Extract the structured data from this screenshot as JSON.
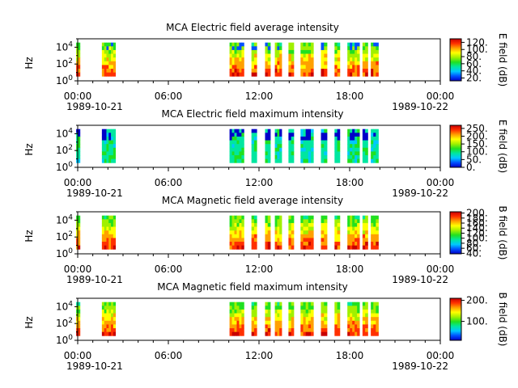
{
  "figure": {
    "x_ticks": [
      "00:00",
      "06:00",
      "12:00",
      "18:00",
      "00:00"
    ],
    "x_tick_hours": [
      0,
      6,
      12,
      18,
      24
    ],
    "date_left": "1989-10-21",
    "date_right": "1989-10-22",
    "y_tick_exponents": [
      0,
      2,
      4
    ],
    "y_tick_base": "10",
    "colormap": [
      "#0000c8",
      "#0050ff",
      "#00c8ff",
      "#00e6a0",
      "#20e020",
      "#a0f000",
      "#ffff00",
      "#ffa000",
      "#ff3000",
      "#c80000"
    ]
  },
  "chart_data": [
    {
      "type": "heatmap",
      "title": "MCA  Electric field average intensity",
      "ylabel": "Hz",
      "ylim": [
        1,
        100000
      ],
      "yscale": "log",
      "xlim_hours": [
        0,
        24
      ],
      "colorbar_label": "E field (dB)",
      "colorbar_ticks": [
        "20.",
        "40.",
        "60.",
        "80.",
        "100.",
        "120."
      ],
      "colorbar_values": [
        20,
        40,
        60,
        80,
        100,
        120
      ],
      "colorbar_range": [
        12,
        130
      ],
      "data_intervals_hours": [
        [
          -0.1,
          0.15
        ],
        [
          1.6,
          2.5
        ],
        [
          10.05,
          11.0
        ],
        [
          11.5,
          11.85
        ],
        [
          12.4,
          12.75
        ],
        [
          13.05,
          13.5
        ],
        [
          13.95,
          14.3
        ],
        [
          14.75,
          15.6
        ],
        [
          16.1,
          16.5
        ],
        [
          17.0,
          17.35
        ],
        [
          17.85,
          18.65
        ],
        [
          18.85,
          19.2
        ],
        [
          19.4,
          19.9
        ]
      ]
    },
    {
      "type": "heatmap",
      "title": "MCA  Electric field maximum intensity",
      "ylabel": "Hz",
      "ylim": [
        1,
        100000
      ],
      "yscale": "log",
      "xlim_hours": [
        0,
        24
      ],
      "colorbar_label": "E field (dB)",
      "colorbar_ticks": [
        "0.",
        "50.",
        "100.",
        "150.",
        "200.",
        "250."
      ],
      "colorbar_values": [
        0,
        50,
        100,
        150,
        200,
        250
      ],
      "colorbar_range": [
        0,
        270
      ],
      "data_intervals_hours": [
        [
          -0.1,
          0.15
        ],
        [
          1.6,
          2.5
        ],
        [
          10.05,
          11.0
        ],
        [
          11.5,
          11.85
        ],
        [
          12.4,
          12.75
        ],
        [
          13.05,
          13.5
        ],
        [
          13.95,
          14.3
        ],
        [
          14.75,
          15.6
        ],
        [
          16.1,
          16.5
        ],
        [
          17.0,
          17.35
        ],
        [
          17.85,
          18.65
        ],
        [
          18.85,
          19.2
        ],
        [
          19.4,
          19.9
        ]
      ]
    },
    {
      "type": "heatmap",
      "title": "MCA  Magnetic field average intensity",
      "ylabel": "Hz",
      "ylim": [
        1,
        100000
      ],
      "yscale": "log",
      "xlim_hours": [
        0,
        24
      ],
      "colorbar_label": "B field (dB)",
      "colorbar_ticks": [
        "40.",
        "60.",
        "80.",
        "100.",
        "120.",
        "140.",
        "160.",
        "180.",
        "200."
      ],
      "colorbar_values": [
        40,
        60,
        80,
        100,
        120,
        140,
        160,
        180,
        200
      ],
      "colorbar_range": [
        38,
        205
      ],
      "data_intervals_hours": [
        [
          -0.1,
          0.15
        ],
        [
          1.6,
          2.5
        ],
        [
          10.05,
          11.0
        ],
        [
          11.5,
          11.85
        ],
        [
          12.4,
          12.75
        ],
        [
          13.05,
          13.5
        ],
        [
          13.95,
          14.3
        ],
        [
          14.75,
          15.6
        ],
        [
          16.1,
          16.5
        ],
        [
          17.0,
          17.35
        ],
        [
          17.85,
          18.65
        ],
        [
          18.85,
          19.2
        ],
        [
          19.4,
          19.9
        ]
      ]
    },
    {
      "type": "heatmap",
      "title": "MCA  Magnetic field maximum intensity",
      "ylabel": "Hz",
      "ylim": [
        1,
        100000
      ],
      "yscale": "log",
      "xlim_hours": [
        0,
        24
      ],
      "colorbar_label": "B field (dB)",
      "colorbar_ticks": [
        "100.",
        "200."
      ],
      "colorbar_values": [
        100,
        200
      ],
      "colorbar_range": [
        10,
        210
      ],
      "data_intervals_hours": [
        [
          -0.1,
          0.15
        ],
        [
          1.6,
          2.5
        ],
        [
          10.05,
          11.0
        ],
        [
          11.5,
          11.85
        ],
        [
          12.4,
          12.75
        ],
        [
          13.05,
          13.5
        ],
        [
          13.95,
          14.3
        ],
        [
          14.75,
          15.6
        ],
        [
          16.1,
          16.5
        ],
        [
          17.0,
          17.35
        ],
        [
          17.85,
          18.65
        ],
        [
          18.85,
          19.2
        ],
        [
          19.4,
          19.9
        ]
      ]
    }
  ]
}
